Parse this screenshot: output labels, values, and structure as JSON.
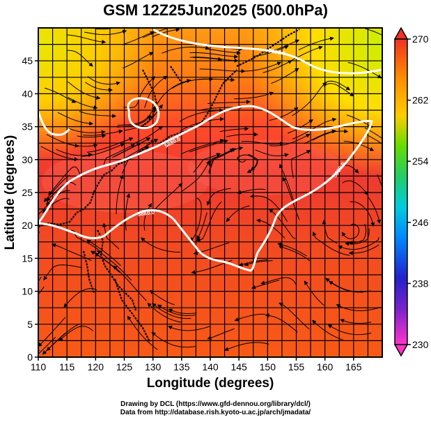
{
  "title": "GSM 12Z25Jun2025 (500.0hPa)",
  "axes": {
    "xlabel": "Longitude (degrees)",
    "ylabel": "Latitude  (degrees)",
    "x_ticks": [
      "110",
      "115",
      "120",
      "125",
      "130",
      "135",
      "140",
      "145",
      "150",
      "155",
      "160",
      "165"
    ],
    "y_ticks": [
      "0",
      "5",
      "10",
      "15",
      "20",
      "25",
      "30",
      "35",
      "40",
      "45"
    ]
  },
  "colorbar": {
    "ticks": [
      "270",
      "262",
      "254",
      "246",
      "238",
      "230"
    ],
    "range": [
      230,
      270
    ],
    "colors": [
      "#ff33cc",
      "#3333cc",
      "#0077ff",
      "#00ccff",
      "#33cc66",
      "#66dd00",
      "#ffcc00",
      "#ff8800",
      "#ee3322",
      "#dd2222"
    ]
  },
  "contours": {
    "label": "5880.0",
    "line_color": "#ffffff"
  },
  "credits": {
    "line1": "Drawing by DCL (https://www.gfd-dennou.org/library/dcl/)",
    "line2": "Data from http://database.rish.kyoto-u.ac.jp/arch/jmadata/"
  }
}
